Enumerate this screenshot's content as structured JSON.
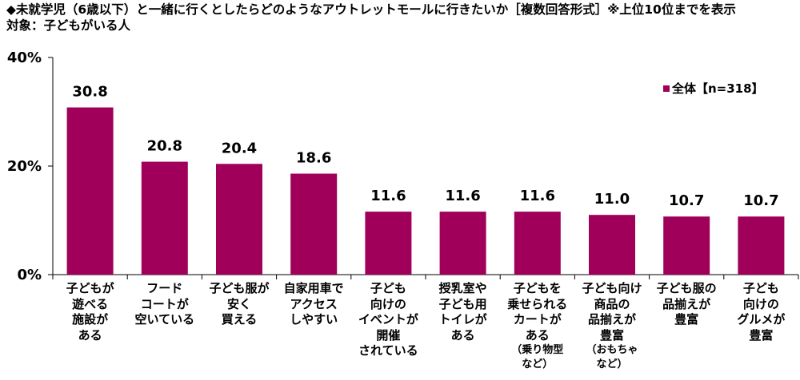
{
  "title": "◆未就学児（6歳以下）と一緒に行くとしたらどのようなアウトレットモールに行きたいか［複数回答形式］※上位10位までを表示",
  "subtitle": "対象：子どもがいる人",
  "colors": {
    "bar": "#a0005a",
    "axis": "#000000"
  },
  "chart_data": {
    "type": "bar",
    "ylim": [
      0,
      40
    ],
    "yticks": [
      0,
      20,
      40
    ],
    "ytick_labels": [
      "0%",
      "20%",
      "40%"
    ],
    "grid": false,
    "legend_position": "top-right",
    "series": [
      {
        "name": "全体【n=318】",
        "values": [
          30.8,
          20.8,
          20.4,
          18.6,
          11.6,
          11.6,
          11.6,
          11.0,
          10.7,
          10.7
        ],
        "labels": [
          "30.8",
          "20.8",
          "20.4",
          "18.6",
          "11.6",
          "11.6",
          "11.6",
          "11.0",
          "10.7",
          "10.7"
        ]
      }
    ],
    "categories": [
      {
        "lines": [
          "子どもが",
          "遊べる",
          "施設が",
          "ある"
        ],
        "note": []
      },
      {
        "lines": [
          "フード",
          "コートが",
          "空いている"
        ],
        "note": []
      },
      {
        "lines": [
          "子ども服が",
          "安く",
          "買える"
        ],
        "note": []
      },
      {
        "lines": [
          "自家用車で",
          "アクセス",
          "しやすい"
        ],
        "note": []
      },
      {
        "lines": [
          "子ども",
          "向けの",
          "イベントが",
          "開催",
          "されている"
        ],
        "note": []
      },
      {
        "lines": [
          "授乳室や",
          "子ども用",
          "トイレが",
          "ある"
        ],
        "note": []
      },
      {
        "lines": [
          "子どもを",
          "乗せられる",
          "カートが",
          "ある"
        ],
        "note": [
          "（乗り物型",
          "など）"
        ]
      },
      {
        "lines": [
          "子ども向け",
          "商品の",
          "品揃えが",
          "豊富"
        ],
        "note": [
          "（おもちゃ",
          "など）"
        ]
      },
      {
        "lines": [
          "子ども服の",
          "品揃えが",
          "豊富"
        ],
        "note": []
      },
      {
        "lines": [
          "子ども",
          "向けの",
          "グルメが",
          "豊富"
        ],
        "note": []
      }
    ]
  }
}
